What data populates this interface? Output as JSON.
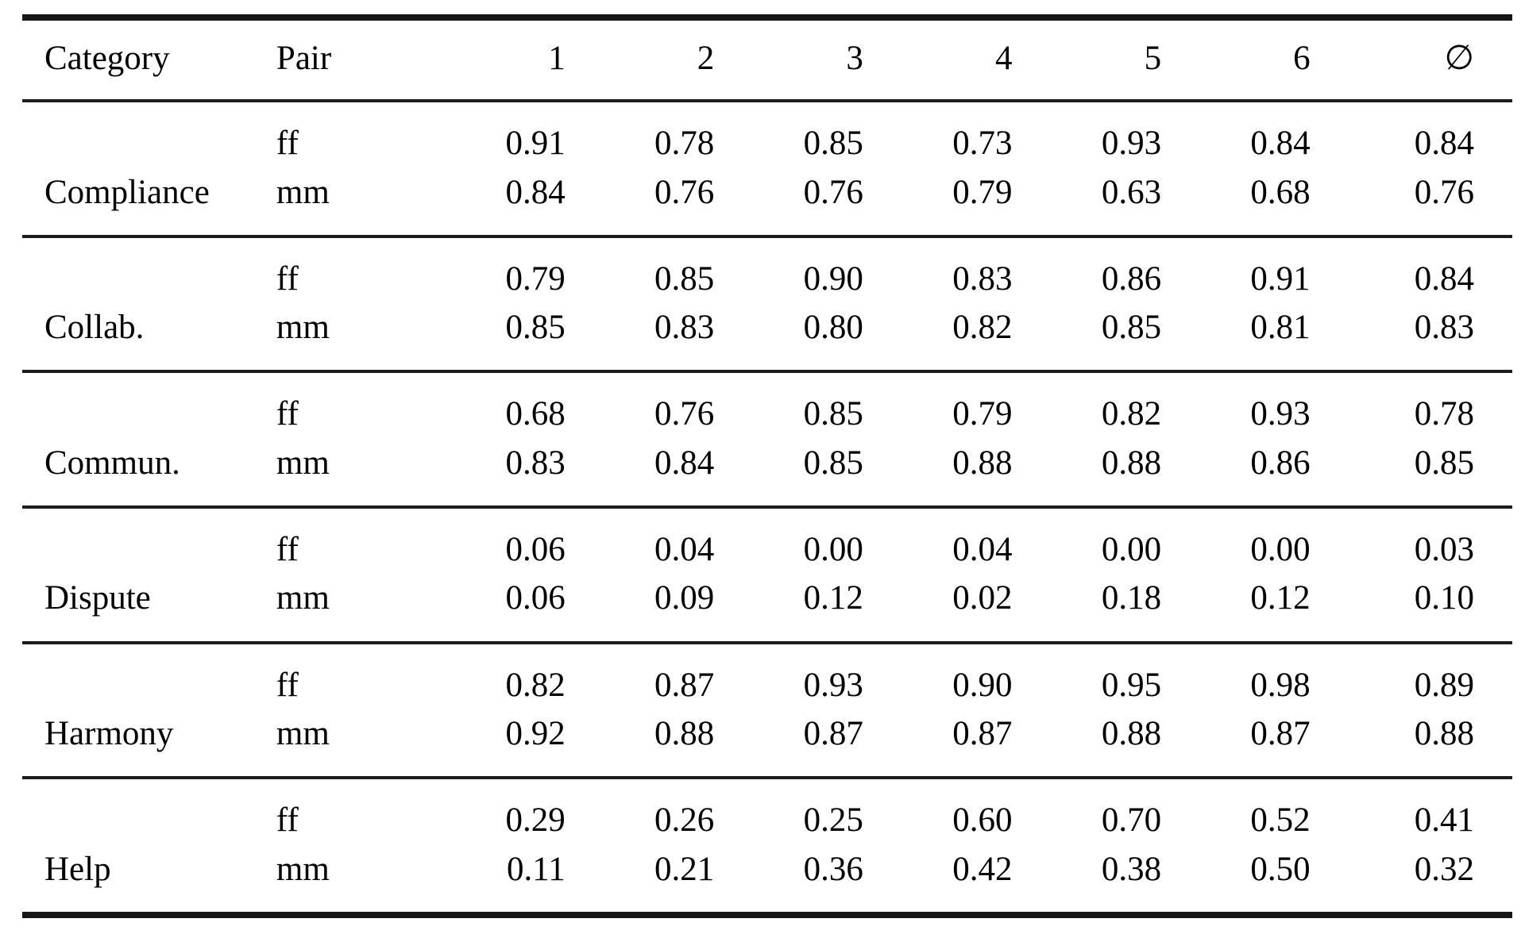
{
  "colors": {
    "text": "#000000",
    "rule": "#1c1c1c",
    "background": "#ffffff"
  },
  "table": {
    "columns": [
      "Category",
      "Pair",
      "1",
      "2",
      "3",
      "4",
      "5",
      "6",
      "∅"
    ],
    "groups": [
      {
        "category": "Compliance",
        "rows": [
          {
            "pair": "ff",
            "values": [
              "0.91",
              "0.78",
              "0.85",
              "0.73",
              "0.93",
              "0.84",
              "0.84"
            ]
          },
          {
            "pair": "mm",
            "values": [
              "0.84",
              "0.76",
              "0.76",
              "0.79",
              "0.63",
              "0.68",
              "0.76"
            ]
          }
        ]
      },
      {
        "category": "Collab.",
        "rows": [
          {
            "pair": "ff",
            "values": [
              "0.79",
              "0.85",
              "0.90",
              "0.83",
              "0.86",
              "0.91",
              "0.84"
            ]
          },
          {
            "pair": "mm",
            "values": [
              "0.85",
              "0.83",
              "0.80",
              "0.82",
              "0.85",
              "0.81",
              "0.83"
            ]
          }
        ]
      },
      {
        "category": "Commun.",
        "rows": [
          {
            "pair": "ff",
            "values": [
              "0.68",
              "0.76",
              "0.85",
              "0.79",
              "0.82",
              "0.93",
              "0.78"
            ]
          },
          {
            "pair": "mm",
            "values": [
              "0.83",
              "0.84",
              "0.85",
              "0.88",
              "0.88",
              "0.86",
              "0.85"
            ]
          }
        ]
      },
      {
        "category": "Dispute",
        "rows": [
          {
            "pair": "ff",
            "values": [
              "0.06",
              "0.04",
              "0.00",
              "0.04",
              "0.00",
              "0.00",
              "0.03"
            ]
          },
          {
            "pair": "mm",
            "values": [
              "0.06",
              "0.09",
              "0.12",
              "0.02",
              "0.18",
              "0.12",
              "0.10"
            ]
          }
        ]
      },
      {
        "category": "Harmony",
        "rows": [
          {
            "pair": "ff",
            "values": [
              "0.82",
              "0.87",
              "0.93",
              "0.90",
              "0.95",
              "0.98",
              "0.89"
            ]
          },
          {
            "pair": "mm",
            "values": [
              "0.92",
              "0.88",
              "0.87",
              "0.87",
              "0.88",
              "0.87",
              "0.88"
            ]
          }
        ]
      },
      {
        "category": "Help",
        "rows": [
          {
            "pair": "ff",
            "values": [
              "0.29",
              "0.26",
              "0.25",
              "0.60",
              "0.70",
              "0.52",
              "0.41"
            ]
          },
          {
            "pair": "mm",
            "values": [
              "0.11",
              "0.21",
              "0.36",
              "0.42",
              "0.38",
              "0.50",
              "0.32"
            ]
          }
        ]
      }
    ]
  }
}
